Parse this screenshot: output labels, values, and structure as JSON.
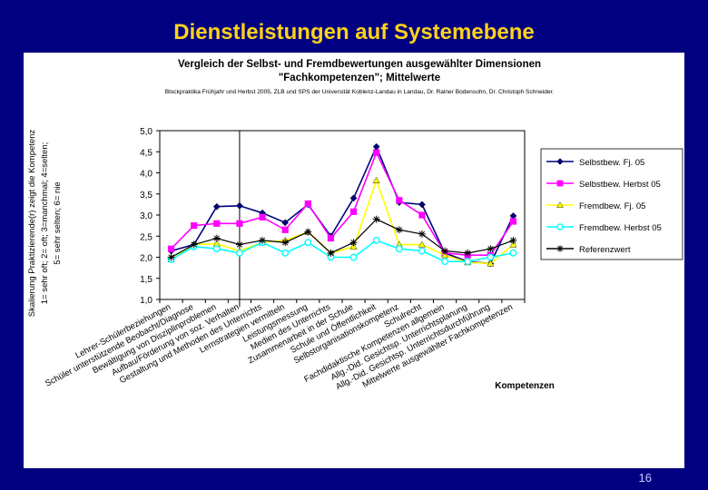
{
  "slide_title": "Dienstleistungen auf Systemebene",
  "page_number": "16",
  "colors": {
    "background": "#000080",
    "title": "#ffd21a",
    "panel": "#ffffff"
  },
  "chart_data": {
    "type": "line",
    "title": "Vergleich der Selbst- und Fremdbewertungen ausgewählter Dimensionen",
    "title2": "\"Fachkompetenzen\"; Mittelwerte",
    "subtitle": "Blockpraktika Frühjahr und Herbst 2005, ZLB und SPS der Universität Koblenz-Landau in Landau, Dr. Rainer Bodensohn, Dr. Christoph Schneider.",
    "ylabel_lines": [
      "Skalierung Praktizierende(r) zeigt die Kompetenz",
      "1= sehr oft;  2= oft;  3=manchmal;  4=selten;",
      "5= sehr selten;  6= nie"
    ],
    "xlabel": "Kompetenzen",
    "ylim": [
      1.0,
      5.0
    ],
    "yticks": [
      "1,0",
      "1,5",
      "2,0",
      "2,5",
      "3,0",
      "3,5",
      "4,0",
      "4,5",
      "5,0"
    ],
    "divider_after_index": 3,
    "categories": [
      "Lehrer-Schülerbeziehungen",
      "Schüler unterstützende Beobacht/Diagnose",
      "Bewältigung von Disziplinproblemen",
      "Aufbau/Förderung von soz. Verhalten",
      "Gestaltung und Methoden des Unterrichts",
      "Lernstrategien vermitteln",
      "Leistungsmessung",
      "Medien des Unterrichts",
      "Zusammenarbeit in der Schule",
      "Schule und Öffentlichkeit",
      "Selbstorganisationskompetenz",
      "Schulrecht",
      "Fachdidaktische Kompetenzen allgemein",
      "Allg.-Did. Gesichtsp. Unterrichtsplanung",
      "Allg.-Did. Gesichtsp. Unterrichtsdurchführung",
      "Mittelwerte ausgewählter Fachkompetenzen"
    ],
    "series": [
      {
        "name": "Selbstbew. Fj. 05",
        "color": "#000080",
        "marker": "diamond",
        "values": [
          2.15,
          2.3,
          3.2,
          3.22,
          3.05,
          2.82,
          3.25,
          2.5,
          3.4,
          4.62,
          3.3,
          3.25,
          2.1,
          1.9,
          1.85,
          2.98
        ]
      },
      {
        "name": "Selbstbew. Herbst 05",
        "color": "#ff00ff",
        "marker": "square",
        "values": [
          2.2,
          2.75,
          2.8,
          2.8,
          2.95,
          2.65,
          3.27,
          2.45,
          3.08,
          4.48,
          3.35,
          3.0,
          2.1,
          2.05,
          2.05,
          2.85
        ]
      },
      {
        "name": "Fremdbew. Fj. 05",
        "color": "#ffff00",
        "marker": "triangle",
        "values": [
          1.95,
          2.3,
          2.32,
          2.15,
          2.35,
          2.4,
          2.6,
          2.1,
          2.25,
          3.82,
          2.3,
          2.3,
          2.05,
          1.88,
          1.85,
          2.3
        ]
      },
      {
        "name": "Fremdbew. Herbst 05",
        "color": "#00ffff",
        "marker": "circle",
        "values": [
          1.95,
          2.25,
          2.2,
          2.1,
          2.35,
          2.1,
          2.35,
          2.0,
          2.0,
          2.4,
          2.2,
          2.15,
          1.9,
          1.9,
          2.0,
          2.1
        ]
      },
      {
        "name": "Referenzwert",
        "color": "#000000",
        "marker": "star",
        "values": [
          2.0,
          2.3,
          2.45,
          2.3,
          2.4,
          2.35,
          2.6,
          2.1,
          2.35,
          2.9,
          2.65,
          2.55,
          2.15,
          2.1,
          2.2,
          2.4
        ]
      }
    ]
  }
}
